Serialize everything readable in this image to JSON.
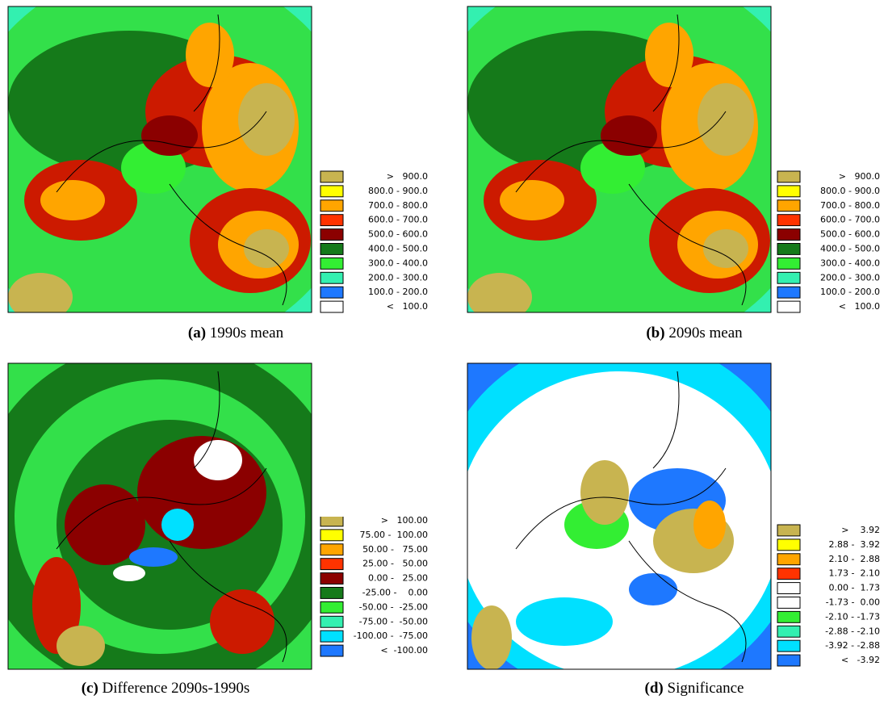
{
  "panels": [
    {
      "caption_label": "(a)",
      "caption_text": "1990s mean",
      "legend": [
        {
          "color": "#c8b450",
          "label": ">   900.0"
        },
        {
          "color": "#ffff00",
          "label": "800.0 - 900.0"
        },
        {
          "color": "#ffa500",
          "label": "700.0 - 800.0"
        },
        {
          "color": "#ff3300",
          "label": "600.0 - 700.0"
        },
        {
          "color": "#8b0000",
          "label": "500.0 - 600.0"
        },
        {
          "color": "#157a1a",
          "label": "400.0 - 500.0"
        },
        {
          "color": "#33ee33",
          "label": "300.0 - 400.0"
        },
        {
          "color": "#33f0b0",
          "label": "200.0 - 300.0"
        },
        {
          "color": "#1e78ff",
          "label": "100.0 - 200.0"
        },
        {
          "color": "#ffffff",
          "label": "<   100.0"
        }
      ]
    },
    {
      "caption_label": "(b)",
      "caption_text": "2090s mean",
      "legend": [
        {
          "color": "#c8b450",
          "label": ">   900.0"
        },
        {
          "color": "#ffff00",
          "label": "800.0 - 900.0"
        },
        {
          "color": "#ffa500",
          "label": "700.0 - 800.0"
        },
        {
          "color": "#ff3300",
          "label": "600.0 - 700.0"
        },
        {
          "color": "#8b0000",
          "label": "500.0 - 600.0"
        },
        {
          "color": "#157a1a",
          "label": "400.0 - 500.0"
        },
        {
          "color": "#33ee33",
          "label": "300.0 - 400.0"
        },
        {
          "color": "#33f0b0",
          "label": "200.0 - 300.0"
        },
        {
          "color": "#1e78ff",
          "label": "100.0 - 200.0"
        },
        {
          "color": "#ffffff",
          "label": "<   100.0"
        }
      ]
    },
    {
      "caption_label": "(c)",
      "caption_text": "Difference 2090s-1990s",
      "legend": [
        {
          "color": "#c8b450",
          "label": ">   100.00"
        },
        {
          "color": "#ffff00",
          "label": "75.00 -  100.00"
        },
        {
          "color": "#ffa500",
          "label": "50.00 -   75.00"
        },
        {
          "color": "#ff3300",
          "label": "25.00 -   50.00"
        },
        {
          "color": "#8b0000",
          "label": "0.00 -   25.00"
        },
        {
          "color": "#157a1a",
          "label": "-25.00 -    0.00"
        },
        {
          "color": "#33ee33",
          "label": "-50.00 -  -25.00"
        },
        {
          "color": "#33f0b0",
          "label": "-75.00 -  -50.00"
        },
        {
          "color": "#00e0ff",
          "label": "-100.00 -  -75.00"
        },
        {
          "color": "#1e78ff",
          "label": "<  -100.00"
        }
      ]
    },
    {
      "caption_label": "(d)",
      "caption_text": "Significance",
      "legend": [
        {
          "color": "#c8b450",
          "label": ">    3.92"
        },
        {
          "color": "#ffff00",
          "label": "2.88 -  3.92"
        },
        {
          "color": "#ffa500",
          "label": "2.10 -  2.88"
        },
        {
          "color": "#ff3300",
          "label": "1.73 -  2.10"
        },
        {
          "color": "#ffffff",
          "label": "0.00 -  1.73"
        },
        {
          "color": "#ffffff",
          "label": "-1.73 -  0.00"
        },
        {
          "color": "#33ee33",
          "label": "-2.10 - -1.73"
        },
        {
          "color": "#33f0b0",
          "label": "-2.88 - -2.10"
        },
        {
          "color": "#00e0ff",
          "label": "-3.92 - -2.88"
        },
        {
          "color": "#1e78ff",
          "label": "<   -3.92"
        }
      ]
    }
  ]
}
